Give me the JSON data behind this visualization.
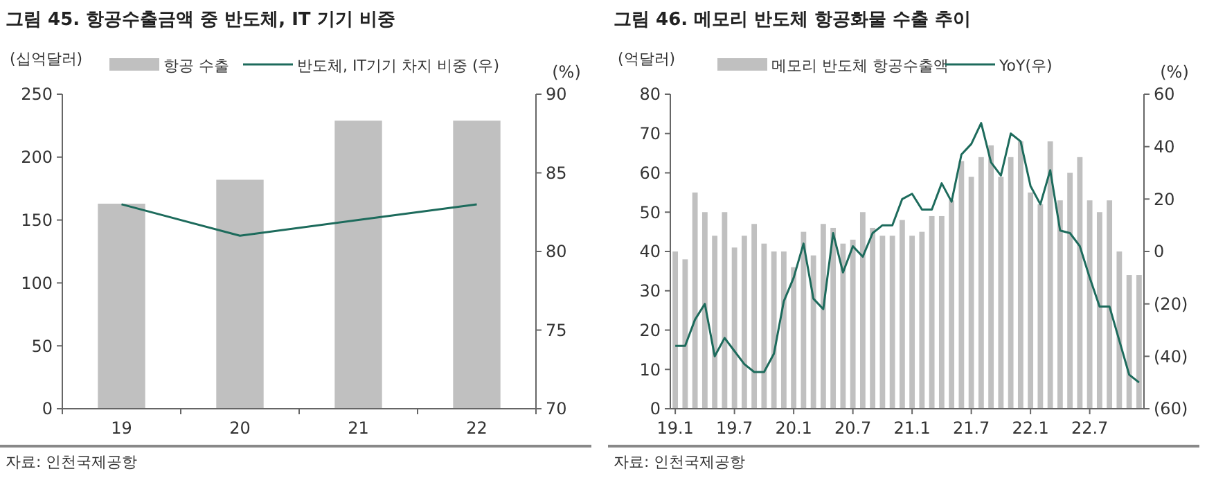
{
  "chart_data": [
    {
      "type": "bar",
      "title": "그림 45. 항공수출금액 중 반도체, IT 기기 비중",
      "ylabel": "(십억달러)",
      "y2label": "(%)",
      "categories": [
        "19",
        "20",
        "21",
        "22"
      ],
      "series": [
        {
          "name": "항공 수출",
          "color": "#c0c0c0",
          "values": [
            163,
            182,
            229,
            229
          ]
        },
        {
          "name": "반도체, IT기기 차지 비중 (우)",
          "type": "line",
          "axis": "y2",
          "color": "#1d6b5c",
          "values": [
            83,
            81,
            82,
            83
          ]
        }
      ],
      "ylim": [
        0,
        250
      ],
      "yticks": [
        0,
        50,
        100,
        150,
        200,
        250
      ],
      "y2lim": [
        70,
        90
      ],
      "y2ticks": [
        70,
        75,
        80,
        85,
        90
      ],
      "legend": "top",
      "annotations": [
        "자료: 인천국제공항"
      ]
    },
    {
      "type": "bar",
      "title": "그림 46. 메모리 반도체 항공화물 수출 추이",
      "ylabel": "(억달러)",
      "y2label": "(%)",
      "categories": [
        "19.1",
        null,
        null,
        null,
        null,
        null,
        "19.7",
        null,
        null,
        null,
        null,
        null,
        "20.1",
        null,
        null,
        null,
        null,
        null,
        "20.7",
        null,
        null,
        null,
        null,
        null,
        "21.1",
        null,
        null,
        null,
        null,
        null,
        "21.7",
        null,
        null,
        null,
        null,
        null,
        "22.1",
        null,
        null,
        null,
        null,
        null,
        "22.7",
        null,
        null,
        null,
        null,
        null
      ],
      "series": [
        {
          "name": "메모리 반도체 항공수출액",
          "color": "#c0c0c0",
          "values": [
            40,
            38,
            55,
            50,
            44,
            50,
            41,
            44,
            47,
            42,
            40,
            40,
            36,
            45,
            39,
            47,
            46,
            42,
            43,
            50,
            46,
            44,
            44,
            48,
            44,
            45,
            49,
            49,
            53,
            63,
            59,
            64,
            67,
            59,
            64,
            68,
            55,
            52,
            68,
            53,
            60,
            64,
            53,
            50,
            53,
            40,
            34,
            34
          ]
        },
        {
          "name": "YoY(우)",
          "type": "line",
          "axis": "y2",
          "color": "#1d6b5c",
          "values": [
            -36,
            -36,
            -26,
            -20,
            -40,
            -33,
            -38,
            -43,
            -46,
            -46,
            -39,
            -19,
            -10,
            3,
            -18,
            -22,
            7,
            -8,
            2,
            -2,
            7,
            10,
            10,
            20,
            22,
            16,
            16,
            26,
            19,
            37,
            41,
            49,
            34,
            29,
            45,
            42,
            25,
            18,
            31,
            8,
            7,
            2,
            -10,
            -21,
            -21,
            -34,
            -47,
            -50
          ]
        }
      ],
      "ylim": [
        0,
        80
      ],
      "yticks": [
        0,
        10,
        20,
        30,
        40,
        50,
        60,
        70,
        80
      ],
      "y2lim": [
        -60,
        60
      ],
      "y2ticks": [
        {
          "value": -60,
          "label": "(60)"
        },
        {
          "value": -40,
          "label": "(40)"
        },
        {
          "value": -20,
          "label": "(20)"
        },
        0,
        20,
        40,
        60
      ],
      "legend": "top",
      "annotations": [
        "자료: 인천국제공항"
      ]
    }
  ]
}
